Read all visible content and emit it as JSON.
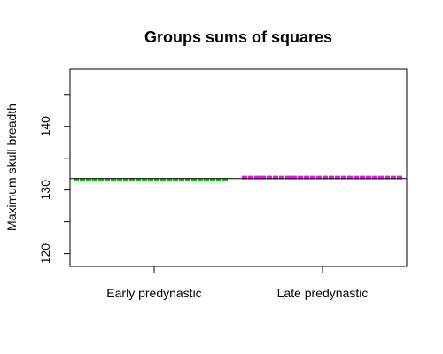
{
  "chart_data": {
    "type": "line",
    "title": "Groups sums of squares",
    "xlabel": "",
    "ylabel": "Maximum skull breadth",
    "categories": [
      "Early predynastic",
      "Late predynastic"
    ],
    "ylim": [
      118,
      149
    ],
    "yticks": [
      120,
      130,
      140
    ],
    "grand_mean": 131.8,
    "series": [
      {
        "color": "#22bb22",
        "values": [
          131.6,
          131.6
        ]
      },
      {
        "color": "#ee11ee",
        "values": [
          131.95,
          131.95
        ]
      }
    ],
    "grid": false
  }
}
